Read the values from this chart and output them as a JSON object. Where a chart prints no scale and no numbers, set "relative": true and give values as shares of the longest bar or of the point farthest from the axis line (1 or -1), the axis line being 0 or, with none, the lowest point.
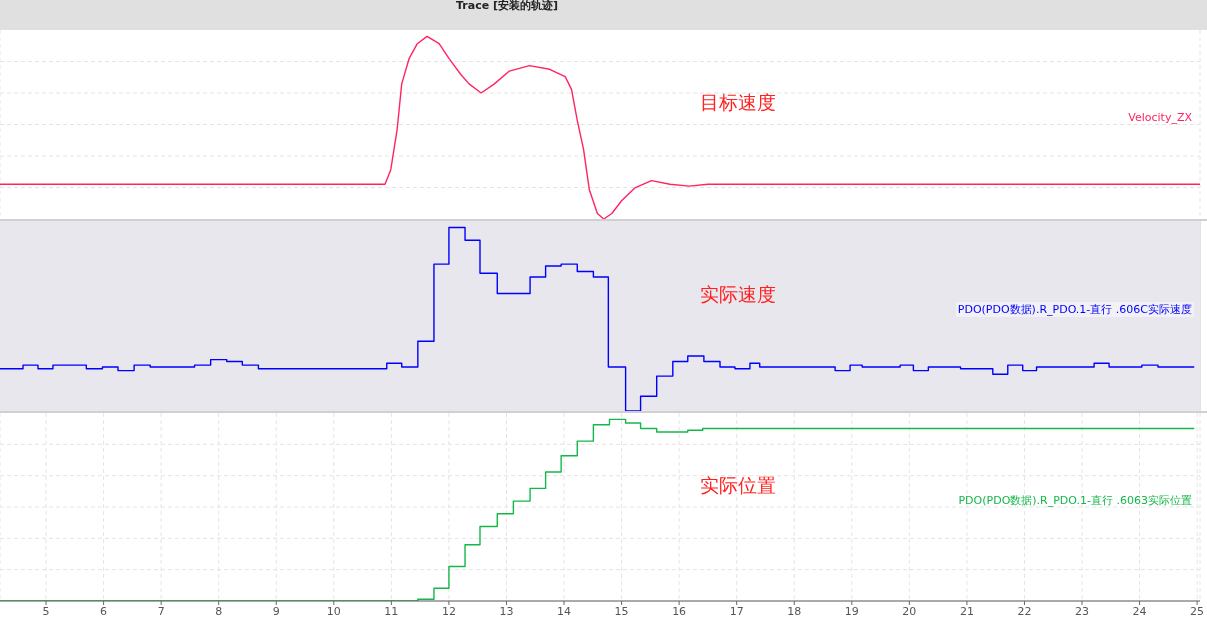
{
  "chart_data": [
    {
      "type": "line",
      "title": "Trace [安装的轨迹]",
      "relative": true,
      "xlim": [
        4.2,
        25.05
      ],
      "xticks": [
        5,
        6,
        7,
        8,
        9,
        10,
        11,
        12,
        13,
        14,
        15,
        16,
        17,
        18,
        19,
        20,
        21,
        22,
        23,
        24,
        25
      ],
      "tick_labels": false,
      "grid": true,
      "legend": false,
      "annotations": [
        "目标速度"
      ],
      "series": [
        {
          "name": "Velocity_ZX",
          "color": "#ff2460",
          "x": [
            4.2,
            10.89,
            10.99,
            11.1,
            11.18,
            11.31,
            11.45,
            11.62,
            11.83,
            12.0,
            12.21,
            12.35,
            12.56,
            12.79,
            13.05,
            13.4,
            13.75,
            14.02,
            14.13,
            14.23,
            14.34,
            14.44,
            14.58,
            14.69,
            14.83,
            15.0,
            15.23,
            15.52,
            15.84,
            16.18,
            16.5,
            25.05
          ],
          "values": [
            0.19,
            0.19,
            0.27,
            0.49,
            0.74,
            0.88,
            0.96,
            1,
            0.96,
            0.88,
            0.79,
            0.74,
            0.69,
            0.74,
            0.81,
            0.84,
            0.82,
            0.78,
            0.71,
            0.54,
            0.38,
            0.16,
            0.03,
            0,
            0.03,
            0.1,
            0.17,
            0.21,
            0.19,
            0.18,
            0.19,
            0.19
          ]
        }
      ]
    },
    {
      "type": "step",
      "relative": true,
      "xlim": [
        4.2,
        25.05
      ],
      "xticks": [
        5,
        6,
        7,
        8,
        9,
        10,
        11,
        12,
        13,
        14,
        15,
        16,
        17,
        18,
        19,
        20,
        21,
        22,
        23,
        24,
        25
      ],
      "tick_labels": false,
      "grid": true,
      "legend": false,
      "annotations": [
        "实际速度"
      ],
      "bands": [
        {
          "axis": "x",
          "from": 4.2,
          "to": 25.05,
          "color": "#e8e7ee"
        }
      ],
      "series": [
        {
          "name": "PDO(PDO数据).R_PDO.1-直行 .606C实际速度",
          "color": "#0000ff",
          "x": [
            4.2,
            4.6,
            4.86,
            5.12,
            5.42,
            5.7,
            5.98,
            6.25,
            6.53,
            6.81,
            7.58,
            7.86,
            8.14,
            8.41,
            8.69,
            8.97,
            10.92,
            11.18,
            11.46,
            11.74,
            12.0,
            12.28,
            12.54,
            12.84,
            13.41,
            13.68,
            13.95,
            14.23,
            14.51,
            14.77,
            15.07,
            15.33,
            15.61,
            15.89,
            16.15,
            16.43,
            16.71,
            16.97,
            17.23,
            17.4,
            18.71,
            18.97,
            19.18,
            19.84,
            20.07,
            20.33,
            20.89,
            21.17,
            21.45,
            21.71,
            21.97,
            22.21,
            22.94,
            23.21,
            23.47,
            24.04,
            24.32,
            24.58,
            24.81,
            24.95
          ],
          "values": [
            0.23,
            0.25,
            0.23,
            0.25,
            0.25,
            0.23,
            0.24,
            0.22,
            0.25,
            0.24,
            0.25,
            0.28,
            0.27,
            0.25,
            0.23,
            0.23,
            0.26,
            0.24,
            0.38,
            0.8,
            1,
            0.93,
            0.75,
            0.64,
            0.73,
            0.79,
            0.8,
            0.76,
            0.73,
            0.24,
            0,
            0.08,
            0.19,
            0.27,
            0.3,
            0.27,
            0.24,
            0.23,
            0.26,
            0.24,
            0.22,
            0.25,
            0.24,
            0.25,
            0.22,
            0.24,
            0.23,
            0.23,
            0.2,
            0.25,
            0.22,
            0.24,
            0.24,
            0.26,
            0.24,
            0.25,
            0.24,
            0.24,
            0.24,
            0.24
          ]
        }
      ]
    },
    {
      "type": "step",
      "relative": true,
      "xlim": [
        4.2,
        25.05
      ],
      "xticks": [
        5,
        6,
        7,
        8,
        9,
        10,
        11,
        12,
        13,
        14,
        15,
        16,
        17,
        18,
        19,
        20,
        21,
        22,
        23,
        24,
        25
      ],
      "tick_labels": "x",
      "grid": true,
      "legend": false,
      "annotations": [
        "实际位置"
      ],
      "series": [
        {
          "name": "PDO(PDO数据).R_PDO.1-直行 .6063实际位置",
          "color": "#14b84a",
          "x": [
            4.2,
            11.46,
            11.74,
            12.0,
            12.28,
            12.54,
            12.84,
            13.12,
            13.41,
            13.68,
            13.95,
            14.23,
            14.51,
            14.79,
            15.07,
            15.33,
            15.61,
            15.87,
            16.15,
            16.41,
            16.69,
            19.84,
            24.95
          ],
          "values": [
            0,
            0.01,
            0.07,
            0.19,
            0.31,
            0.41,
            0.48,
            0.55,
            0.62,
            0.71,
            0.8,
            0.88,
            0.97,
            1,
            0.98,
            0.95,
            0.93,
            0.93,
            0.94,
            0.95,
            0.95,
            0.95,
            0.95
          ]
        }
      ]
    }
  ]
}
